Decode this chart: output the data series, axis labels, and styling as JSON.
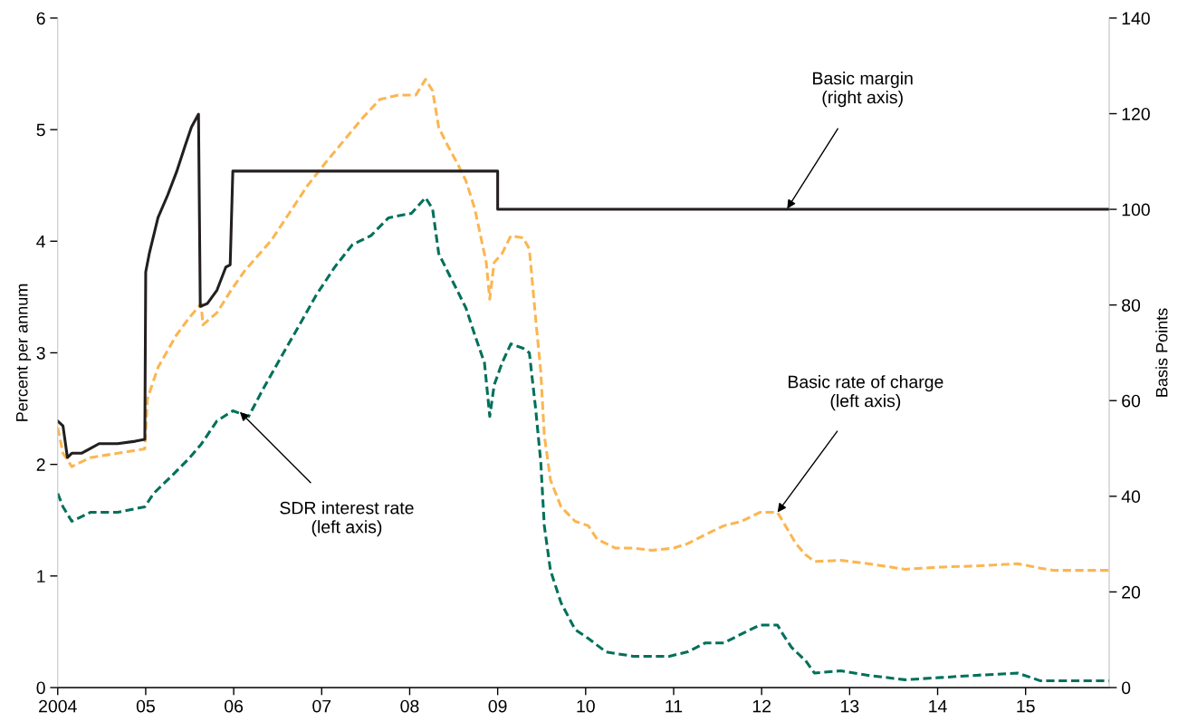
{
  "chart_data": {
    "type": "line",
    "ylabel": "Percent per annum",
    "y2label": "Basis Points",
    "xlim": [
      2004,
      2015.95
    ],
    "xticks": [
      {
        "value": 2004,
        "label": "2004"
      },
      {
        "value": 2005,
        "label": "05"
      },
      {
        "value": 2006,
        "label": "06"
      },
      {
        "value": 2007,
        "label": "07"
      },
      {
        "value": 2008,
        "label": "08"
      },
      {
        "value": 2009,
        "label": "09"
      },
      {
        "value": 2010,
        "label": "10"
      },
      {
        "value": 2011,
        "label": "11"
      },
      {
        "value": 2012,
        "label": "12"
      },
      {
        "value": 2013,
        "label": "13"
      },
      {
        "value": 2014,
        "label": "14"
      },
      {
        "value": 2015,
        "label": "15"
      }
    ],
    "ylim": [
      0,
      6
    ],
    "yticks": [
      0,
      1,
      2,
      3,
      4,
      5,
      6
    ],
    "y2lim": [
      0,
      140
    ],
    "y2ticks": [
      0,
      20,
      40,
      60,
      80,
      100,
      120,
      140
    ],
    "grid": false,
    "legend": false,
    "series": [
      {
        "color": "#fbb651",
        "line_style": "dashed",
        "x": [
          2004.0,
          2004.06,
          2004.16,
          2004.37,
          2004.68,
          2004.99,
          2005.02,
          2005.14,
          2005.35,
          2005.5,
          2005.63,
          2005.65,
          2005.81,
          2005.97,
          2006.12,
          2006.43,
          2006.63,
          2006.84,
          2007.04,
          2007.25,
          2007.46,
          2007.66,
          2007.87,
          2008.07,
          2008.18,
          2008.26,
          2008.33,
          2008.43,
          2008.54,
          2008.64,
          2008.74,
          2008.87,
          2008.91,
          2008.96,
          2009.05,
          2009.15,
          2009.29,
          2009.36,
          2009.43,
          2009.49,
          2009.53,
          2009.6,
          2009.72,
          2009.88,
          2010.03,
          2010.13,
          2010.34,
          2010.54,
          2010.75,
          2011.0,
          2011.16,
          2011.36,
          2011.57,
          2011.77,
          2011.98,
          2012.18,
          2012.24,
          2012.39,
          2012.5,
          2012.6,
          2012.9,
          2013.21,
          2013.63,
          2014.04,
          2014.44,
          2014.91,
          2015.17,
          2015.33,
          2015.95
        ],
        "values": [
          2.33,
          2.1,
          1.98,
          2.06,
          2.1,
          2.14,
          2.59,
          2.87,
          3.16,
          3.32,
          3.44,
          3.25,
          3.36,
          3.56,
          3.73,
          4.01,
          4.25,
          4.5,
          4.7,
          4.9,
          5.1,
          5.27,
          5.31,
          5.31,
          5.45,
          5.35,
          5.02,
          4.86,
          4.7,
          4.54,
          4.29,
          3.81,
          3.48,
          3.81,
          3.89,
          4.05,
          4.03,
          3.93,
          3.32,
          2.83,
          2.26,
          1.86,
          1.62,
          1.49,
          1.45,
          1.33,
          1.25,
          1.25,
          1.23,
          1.25,
          1.29,
          1.37,
          1.45,
          1.49,
          1.57,
          1.57,
          1.49,
          1.29,
          1.19,
          1.13,
          1.14,
          1.11,
          1.06,
          1.08,
          1.09,
          1.11,
          1.07,
          1.05,
          1.05
        ]
      },
      {
        "color": "#00705b",
        "line_style": "dashed",
        "x": [
          2004.0,
          2004.06,
          2004.16,
          2004.37,
          2004.68,
          2004.99,
          2005.09,
          2005.3,
          2005.5,
          2005.63,
          2005.81,
          2005.99,
          2006.17,
          2006.33,
          2006.53,
          2006.74,
          2006.94,
          2007.15,
          2007.35,
          2007.56,
          2007.76,
          2008.02,
          2008.18,
          2008.26,
          2008.33,
          2008.43,
          2008.54,
          2008.64,
          2008.74,
          2008.85,
          2008.91,
          2008.96,
          2009.05,
          2009.15,
          2009.29,
          2009.36,
          2009.43,
          2009.49,
          2009.53,
          2009.6,
          2009.72,
          2009.88,
          2010.03,
          2010.23,
          2010.54,
          2010.95,
          2011.16,
          2011.36,
          2011.57,
          2011.77,
          2011.98,
          2012.18,
          2012.24,
          2012.34,
          2012.5,
          2012.6,
          2012.9,
          2013.21,
          2013.63,
          2014.04,
          2014.44,
          2014.91,
          2015.17,
          2015.95
        ],
        "values": [
          1.74,
          1.62,
          1.49,
          1.57,
          1.57,
          1.62,
          1.74,
          1.9,
          2.06,
          2.18,
          2.39,
          2.48,
          2.43,
          2.67,
          2.95,
          3.24,
          3.52,
          3.77,
          3.97,
          4.05,
          4.21,
          4.25,
          4.39,
          4.29,
          3.89,
          3.73,
          3.56,
          3.4,
          3.16,
          2.91,
          2.43,
          2.71,
          2.91,
          3.08,
          3.04,
          3.0,
          2.51,
          2.02,
          1.45,
          1.05,
          0.76,
          0.52,
          0.44,
          0.32,
          0.28,
          0.28,
          0.32,
          0.4,
          0.4,
          0.48,
          0.56,
          0.56,
          0.48,
          0.36,
          0.24,
          0.13,
          0.15,
          0.11,
          0.07,
          0.09,
          0.11,
          0.13,
          0.06,
          0.06
        ]
      },
      {
        "color": "#231f20",
        "line_style": "solid",
        "axis": "y2",
        "x": [
          2004.0,
          2004.06,
          2004.11,
          2004.16,
          2004.27,
          2004.37,
          2004.47,
          2004.68,
          2004.88,
          2004.99,
          2005.0,
          2005.04,
          2005.14,
          2005.25,
          2005.35,
          2005.45,
          2005.52,
          2005.6,
          2005.62,
          2005.7,
          2005.81,
          2005.91,
          2005.96,
          2005.99,
          2009.0,
          2009.0,
          2015.95
        ],
        "values": [
          55.7,
          54.7,
          48.1,
          49.0,
          49.0,
          50.0,
          51.0,
          51.0,
          51.5,
          51.9,
          86.9,
          90.7,
          98.3,
          103.0,
          107.8,
          113.4,
          117.2,
          119.9,
          79.7,
          80.3,
          83.1,
          87.9,
          88.4,
          108.0,
          108.0,
          100.0,
          100.0
        ]
      }
    ],
    "annotations": [
      {
        "text": "Basic margin\n(right axis)",
        "x": 2012.29,
        "y": 4.29
      },
      {
        "text": "SDR interest rate\n(left axis)",
        "x": 2006.07,
        "y": 2.47
      },
      {
        "text": "Basic rate of charge\n(left axis)",
        "x": 2012.18,
        "y": 1.57
      }
    ]
  }
}
